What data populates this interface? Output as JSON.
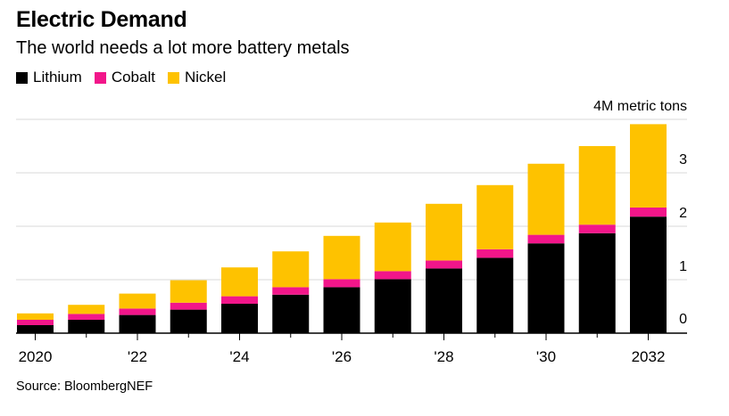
{
  "header": {
    "title": "Electric Demand",
    "subtitle": "The world needs a lot more battery metals"
  },
  "legend": [
    {
      "label": "Lithium",
      "color": "#000000"
    },
    {
      "label": "Cobalt",
      "color": "#f2168a"
    },
    {
      "label": "Nickel",
      "color": "#fec200"
    }
  ],
  "footer": {
    "source": "Source: BloombergNEF"
  },
  "chart_data": {
    "type": "bar",
    "stacked": true,
    "unit_label": "4M metric tons",
    "categories": [
      "2020",
      "2021",
      "2022",
      "2023",
      "2024",
      "2025",
      "2026",
      "2027",
      "2028",
      "2029",
      "2030",
      "2031",
      "2032"
    ],
    "x_tick_labels": [
      "2020",
      "",
      "'22",
      "",
      "'24",
      "",
      "'26",
      "",
      "'28",
      "",
      "'30",
      "",
      "2032"
    ],
    "series": [
      {
        "name": "Lithium",
        "color": "#000000",
        "values": [
          0.15,
          0.25,
          0.34,
          0.44,
          0.55,
          0.72,
          0.86,
          1.01,
          1.21,
          1.41,
          1.68,
          1.87,
          2.18
        ]
      },
      {
        "name": "Cobalt",
        "color": "#f2168a",
        "values": [
          0.1,
          0.11,
          0.12,
          0.13,
          0.14,
          0.14,
          0.15,
          0.15,
          0.15,
          0.16,
          0.16,
          0.16,
          0.17
        ]
      },
      {
        "name": "Nickel",
        "color": "#fec200",
        "values": [
          0.12,
          0.17,
          0.28,
          0.42,
          0.54,
          0.67,
          0.81,
          0.91,
          1.06,
          1.2,
          1.33,
          1.47,
          1.56
        ]
      }
    ],
    "yticks": [
      {
        "value": 0,
        "label": "0"
      },
      {
        "value": 1,
        "label": "1"
      },
      {
        "value": 2,
        "label": "2"
      },
      {
        "value": 3,
        "label": "3"
      },
      {
        "value": 4,
        "label": "4M metric tons"
      }
    ],
    "ylim": [
      0,
      4
    ],
    "grid": true,
    "y_axis_side": "right"
  }
}
